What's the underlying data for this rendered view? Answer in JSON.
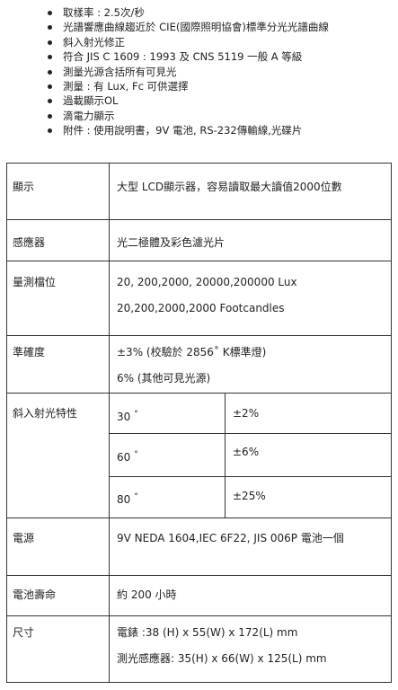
{
  "features": [
    "取樣率 : 2.5次/秒",
    "光譜響應曲線趨近於 CIE(國際照明協會)標準分光光譜曲線",
    "斜入射光修正",
    "符合 JIS C 1609 : 1993 及 CNS 5119 一般 A 等級",
    "測量光源含括所有可見光",
    "測量 : 有 Lux, Fc 可供選擇",
    "過載顯示OL",
    "滴電力顯示",
    "附件 : 使用說明書，9V 電池, RS-232傳輸線,光碟片"
  ],
  "specs": {
    "display": {
      "label": "顯示",
      "value": "大型 LCD顯示器，容易讀取最大讀值2000位數"
    },
    "sensor": {
      "label": "感應器",
      "value": "光二極體及彩色濾光片"
    },
    "range": {
      "label": "量測檔位",
      "lines": [
        "20, 200,2000, 20000,200000 Lux",
        "20,200,2000,2000 Footcandles"
      ]
    },
    "accuracy": {
      "label": "準確度",
      "lines": [
        "±3% (校驗於 2856˚ K標準燈)",
        "6% (其他可見光源)"
      ]
    },
    "oblique": {
      "label": "斜入射光特性",
      "rows": [
        {
          "angle": "30",
          "deg": "°",
          "value": "±2%"
        },
        {
          "angle": "60",
          "deg": "°",
          "value": "±6%"
        },
        {
          "angle": "80",
          "deg": "°",
          "value": "±25%"
        }
      ]
    },
    "power": {
      "label": "電源",
      "value": "9V NEDA 1604,IEC 6F22, JIS 006P 電池一個"
    },
    "battery_life": {
      "label": "電池壽命",
      "value": "約 200 小時"
    },
    "size": {
      "label": "尺寸",
      "lines": [
        "電錶 :38 (H) x 55(W) x 172(L) mm",
        "測光感應器: 35(H) x 66(W) x 125(L) mm"
      ]
    }
  }
}
